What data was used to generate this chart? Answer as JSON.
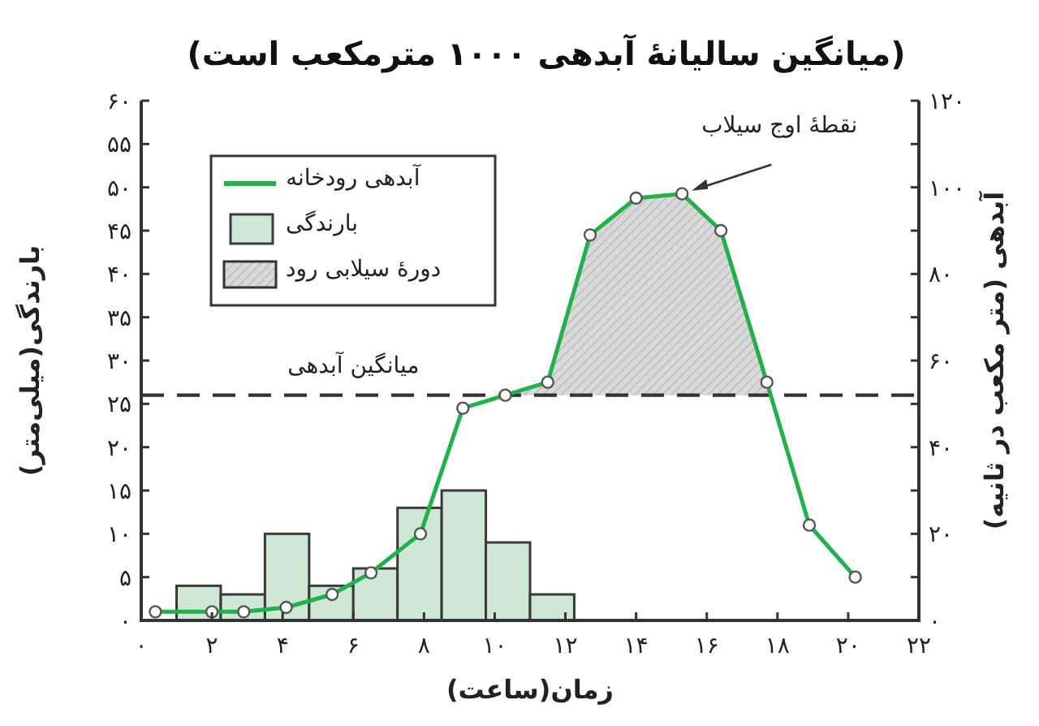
{
  "chart_data": {
    "type": "line",
    "title": "(میانگین سالیانهٔ آبدهی ۱۰۰۰ مترمکعب است)",
    "xlabel": "زمان(ساعت)",
    "ylabel": "بارندگی(میلی‌متر)",
    "y2label": "آبدهی (متر مکعب در ثانیه)",
    "xlim": [
      0,
      22
    ],
    "xticks": [
      {
        "value": 0,
        "label": "۰"
      },
      {
        "value": 2,
        "label": "۲"
      },
      {
        "value": 4,
        "label": "۴"
      },
      {
        "value": 6,
        "label": "۶"
      },
      {
        "value": 8,
        "label": "۸"
      },
      {
        "value": 10,
        "label": "۱۰"
      },
      {
        "value": 12,
        "label": "۱۲"
      },
      {
        "value": 14,
        "label": "۱۴"
      },
      {
        "value": 16,
        "label": "۱۶"
      },
      {
        "value": 18,
        "label": "۱۸"
      },
      {
        "value": 20,
        "label": "۲۰"
      },
      {
        "value": 22,
        "label": "۲۲"
      }
    ],
    "ylim": [
      0,
      60
    ],
    "yticks": [
      {
        "value": 0,
        "label": "۰"
      },
      {
        "value": 5,
        "label": "۵"
      },
      {
        "value": 10,
        "label": "۱۰"
      },
      {
        "value": 15,
        "label": "۱۵"
      },
      {
        "value": 20,
        "label": "۲۰"
      },
      {
        "value": 25,
        "label": "۲۵"
      },
      {
        "value": 30,
        "label": "۳۰"
      },
      {
        "value": 35,
        "label": "۳۵"
      },
      {
        "value": 40,
        "label": "۴۰"
      },
      {
        "value": 45,
        "label": "۴۵"
      },
      {
        "value": 50,
        "label": "۵۰"
      },
      {
        "value": 55,
        "label": "۵۵"
      },
      {
        "value": 60,
        "label": "۶۰"
      }
    ],
    "y2lim": [
      0,
      120
    ],
    "y2ticks": [
      {
        "value": 0,
        "label": "۰"
      },
      {
        "value": 10,
        "label": null
      },
      {
        "value": 20,
        "label": "۲۰"
      },
      {
        "value": 30,
        "label": null
      },
      {
        "value": 40,
        "label": "۴۰"
      },
      {
        "value": 50,
        "label": null
      },
      {
        "value": 60,
        "label": "۶۰"
      },
      {
        "value": 70,
        "label": null
      },
      {
        "value": 80,
        "label": "۸۰"
      },
      {
        "value": 90,
        "label": null
      },
      {
        "value": 100,
        "label": "۱۰۰"
      },
      {
        "value": 110,
        "label": null
      },
      {
        "value": 120,
        "label": "۱۲۰"
      }
    ],
    "series": [
      {
        "name": "آبدهی رودخانه",
        "axis": "y2",
        "color": "#1fb24a",
        "marker": "circle",
        "line_style": "solid",
        "x": [
          0.4,
          2.0,
          2.9,
          4.1,
          5.4,
          6.5,
          7.9,
          9.1,
          10.3,
          11.5,
          12.7,
          14.0,
          15.3,
          16.4,
          17.7,
          18.9,
          20.2
        ],
        "values": [
          2,
          2,
          2,
          3,
          6,
          11,
          20,
          49,
          52,
          55,
          89,
          97.5,
          98.5,
          90,
          55,
          22,
          10
        ]
      },
      {
        "name": "بارندگی",
        "type": "histogram",
        "color": "#cfe8d6",
        "bins": [
          1,
          2.25,
          3.5,
          4.75,
          6,
          7.25,
          8.5,
          9.75,
          11,
          12.25
        ],
        "values": [
          4,
          3,
          10,
          4,
          6,
          13,
          15,
          9,
          3
        ]
      },
      {
        "name": "دورهٔ سیلابی رود",
        "type": "area",
        "axis": "y2",
        "color": "#d9d9d9",
        "x": [
          10.3,
          11.5,
          12.7,
          14.0,
          15.3,
          16.4,
          17.7,
          17.8
        ],
        "values": [
          52,
          55,
          89,
          97.5,
          98.5,
          90,
          55,
          52
        ]
      }
    ],
    "ref_lines": [
      {
        "axis": "y2",
        "value": 52,
        "label": "میانگین آبدهی",
        "color": "#333333",
        "line_style": "dashed"
      }
    ],
    "annotations": [
      "نقطهٔ اوج سیلاب"
    ],
    "legend": "top left"
  }
}
